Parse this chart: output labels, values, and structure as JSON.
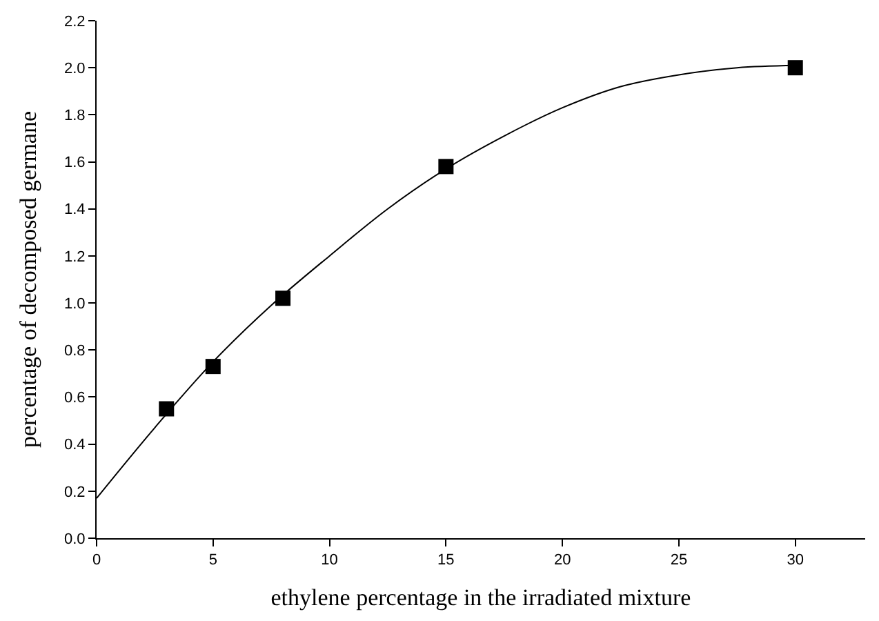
{
  "chart_data": {
    "type": "scatter",
    "xlabel": "ethylene percentage in the irradiated mixture",
    "ylabel": "percentage of decomposed germane",
    "xlim": [
      0,
      33
    ],
    "xticks": [
      0,
      5,
      10,
      15,
      20,
      25,
      30
    ],
    "ylim": [
      0,
      2.2
    ],
    "yticks": [
      {
        "value": 0,
        "label": "0.0"
      },
      {
        "value": 0.2,
        "label": "0.2"
      },
      {
        "value": 0.4,
        "label": "0.4"
      },
      {
        "value": 0.6,
        "label": "0.6"
      },
      {
        "value": 0.8,
        "label": "0.8"
      },
      {
        "value": 1.0,
        "label": "1.0"
      },
      {
        "value": 1.2,
        "label": "1.2"
      },
      {
        "value": 1.4,
        "label": "1.4"
      },
      {
        "value": 1.6,
        "label": "1.6"
      },
      {
        "value": 1.8,
        "label": "1.8"
      },
      {
        "value": 2.0,
        "label": "2.0"
      },
      {
        "value": 2.2,
        "label": "2.2"
      }
    ],
    "marker": "square",
    "series": [
      {
        "color": "#000000",
        "x": [
          3,
          5,
          8,
          15,
          30
        ],
        "values": [
          0.55,
          0.73,
          1.02,
          1.58,
          2.0
        ]
      },
      {
        "type": "line",
        "color": "#000000",
        "marker": "none",
        "line_style": "solid",
        "x": [
          0,
          2.5,
          5,
          7.5,
          10,
          12.5,
          15,
          17.5,
          20,
          22.5,
          25,
          27.5,
          30
        ],
        "values": [
          0.17,
          0.47,
          0.75,
          0.99,
          1.2,
          1.4,
          1.57,
          1.71,
          1.83,
          1.92,
          1.97,
          2.0,
          2.01
        ]
      }
    ]
  }
}
